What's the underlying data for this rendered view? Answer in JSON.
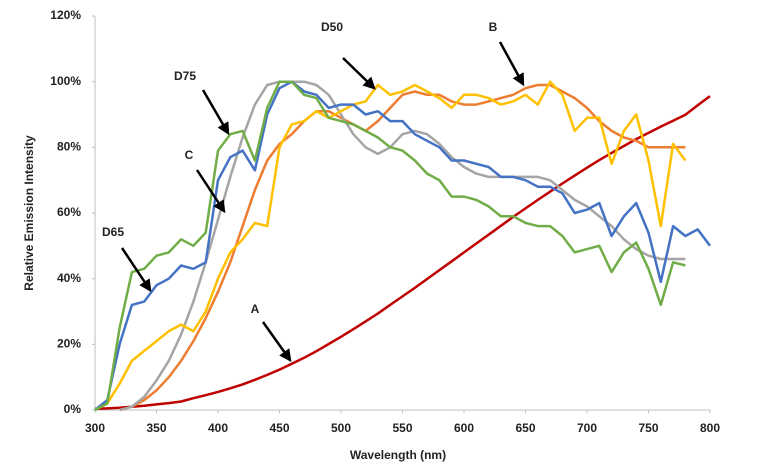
{
  "chart_data": {
    "type": "line",
    "x_label": "Wavelength (nm)",
    "y_label": "Relative Emission Intensity",
    "x": [
      300,
      310,
      320,
      330,
      340,
      350,
      360,
      370,
      380,
      390,
      400,
      410,
      420,
      430,
      440,
      450,
      460,
      470,
      480,
      490,
      500,
      510,
      520,
      530,
      540,
      550,
      560,
      570,
      580,
      590,
      600,
      610,
      620,
      630,
      640,
      650,
      660,
      670,
      680,
      690,
      700,
      710,
      720,
      730,
      740,
      750,
      760,
      770,
      780,
      790,
      800
    ],
    "xlim": [
      300,
      800
    ],
    "xticks": [
      300,
      350,
      400,
      450,
      500,
      550,
      600,
      650,
      700,
      750,
      800
    ],
    "ylim": [
      0,
      120
    ],
    "yticks": [
      {
        "value": 0,
        "label": "0%"
      },
      {
        "value": 20,
        "label": "20%"
      },
      {
        "value": 40,
        "label": "40%"
      },
      {
        "value": 60,
        "label": "60%"
      },
      {
        "value": 80,
        "label": "80%"
      },
      {
        "value": 100,
        "label": "100%"
      },
      {
        "value": 120,
        "label": "120%"
      }
    ],
    "grid": false,
    "series": [
      {
        "name": "A",
        "color": "#c00000",
        "values": [
          0.35,
          0.5,
          0.7,
          1.0,
          1.3,
          1.7,
          2.1,
          2.6,
          3.6,
          4.5,
          5.5,
          6.6,
          7.8,
          9.2,
          10.7,
          12.3,
          14.1,
          15.9,
          17.9,
          20.1,
          22.3,
          24.6,
          27.0,
          29.4,
          32.0,
          34.6,
          37.2,
          39.9,
          42.6,
          45.3,
          48.0,
          50.7,
          53.4,
          56.1,
          58.8,
          61.4,
          64.0,
          66.5,
          69.0,
          71.4,
          73.8,
          76.1,
          78.3,
          80.4,
          82.5,
          84.4,
          86.3,
          88.1,
          89.9,
          92.8,
          95.6
        ]
      },
      {
        "name": "B",
        "color": "#ed7d31",
        "values": [
          null,
          null,
          0,
          1,
          3,
          6,
          10,
          15,
          21,
          28,
          36,
          45,
          56,
          67,
          76,
          81,
          84,
          88,
          91,
          91,
          89,
          87,
          85,
          88,
          92,
          96,
          97,
          96,
          96,
          94,
          93,
          93,
          94,
          95,
          96,
          98,
          99,
          99,
          97,
          95,
          92,
          88,
          85,
          83,
          82,
          80,
          80,
          80,
          80,
          null,
          null
        ]
      },
      {
        "name": "C",
        "color": "#a5a5a5",
        "values": [
          null,
          null,
          0,
          1,
          4,
          9,
          15,
          23,
          33,
          45,
          58,
          71,
          83,
          93,
          99,
          100,
          100,
          100,
          99,
          96,
          90,
          84,
          80,
          78,
          80,
          84,
          85,
          84,
          81,
          77,
          74,
          72,
          71,
          71,
          71,
          71,
          71,
          70,
          67,
          64,
          62,
          59,
          56,
          52,
          49,
          47,
          46,
          46,
          46,
          null,
          null
        ]
      },
      {
        "name": "D50",
        "color": "#ffc000",
        "values": [
          0,
          2,
          8,
          15,
          18,
          21,
          24,
          26,
          24,
          30,
          40,
          48,
          52,
          57,
          56,
          80,
          87,
          88,
          91,
          89,
          91,
          93,
          94,
          99,
          96,
          97,
          99,
          97,
          95,
          92,
          96,
          96,
          95,
          93,
          94,
          96,
          93,
          100,
          96,
          85,
          89,
          89,
          75,
          85,
          90,
          76,
          56,
          81,
          76,
          null,
          null
        ]
      },
      {
        "name": "D65",
        "color": "#4472c4",
        "values": [
          0,
          3,
          20,
          32,
          33,
          38,
          40,
          44,
          43,
          45,
          70,
          77,
          79,
          73,
          90,
          98,
          100,
          97,
          96,
          92,
          93,
          93,
          90,
          91,
          88,
          88,
          84,
          82,
          80,
          76,
          76,
          75,
          74,
          71,
          71,
          70,
          68,
          68,
          66,
          60,
          61,
          63,
          53,
          59,
          63,
          54,
          39,
          56,
          53,
          55,
          50
        ]
      },
      {
        "name": "D75",
        "color": "#70ad47",
        "values": [
          0,
          2,
          25,
          42,
          43,
          47,
          48,
          52,
          50,
          54,
          79,
          84,
          85,
          76,
          92,
          100,
          100,
          96,
          95,
          89,
          88,
          87,
          85,
          83,
          80,
          79,
          76,
          72,
          70,
          65,
          65,
          64,
          62,
          59,
          59,
          57,
          56,
          56,
          53,
          48,
          49,
          50,
          42,
          48,
          51,
          43,
          32,
          45,
          44,
          null,
          null
        ]
      }
    ]
  }
}
